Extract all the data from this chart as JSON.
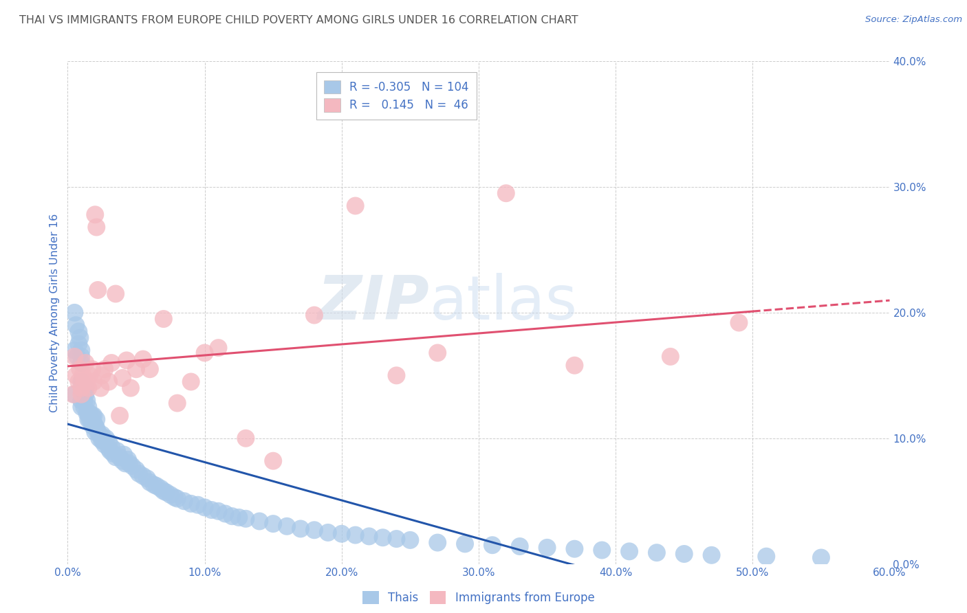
{
  "title": "THAI VS IMMIGRANTS FROM EUROPE CHILD POVERTY AMONG GIRLS UNDER 16 CORRELATION CHART",
  "source": "Source: ZipAtlas.com",
  "ylabel": "Child Poverty Among Girls Under 16",
  "xlim": [
    0,
    0.6
  ],
  "ylim": [
    0,
    0.4
  ],
  "legend_label_thai": "Thais",
  "legend_label_europe": "Immigrants from Europe",
  "thai_R": "-0.305",
  "thai_N": "104",
  "europe_R": "0.145",
  "europe_N": "46",
  "thai_color": "#a8c8e8",
  "thai_line_color": "#2255aa",
  "europe_color": "#f4b8c0",
  "europe_line_color": "#e05070",
  "background_color": "#ffffff",
  "grid_color": "#cccccc",
  "title_color": "#555555",
  "axis_label_color": "#4472c4",
  "legend_text_color": "#4472c4",
  "watermark_zip": "ZIP",
  "watermark_atlas": "atlas",
  "thai_scatter_x": [
    0.005,
    0.005,
    0.007,
    0.008,
    0.009,
    0.01,
    0.01,
    0.01,
    0.01,
    0.01,
    0.012,
    0.012,
    0.013,
    0.013,
    0.014,
    0.014,
    0.015,
    0.015,
    0.015,
    0.016,
    0.016,
    0.017,
    0.018,
    0.018,
    0.019,
    0.019,
    0.02,
    0.02,
    0.021,
    0.021,
    0.022,
    0.023,
    0.024,
    0.025,
    0.025,
    0.026,
    0.027,
    0.028,
    0.03,
    0.03,
    0.031,
    0.032,
    0.033,
    0.035,
    0.036,
    0.038,
    0.04,
    0.041,
    0.042,
    0.044,
    0.045,
    0.047,
    0.05,
    0.052,
    0.055,
    0.058,
    0.06,
    0.063,
    0.065,
    0.068,
    0.07,
    0.072,
    0.075,
    0.078,
    0.08,
    0.085,
    0.09,
    0.095,
    0.1,
    0.105,
    0.11,
    0.115,
    0.12,
    0.125,
    0.13,
    0.14,
    0.15,
    0.16,
    0.17,
    0.18,
    0.19,
    0.2,
    0.21,
    0.22,
    0.23,
    0.24,
    0.25,
    0.27,
    0.29,
    0.31,
    0.33,
    0.35,
    0.37,
    0.39,
    0.41,
    0.43,
    0.45,
    0.47,
    0.51,
    0.55,
    0.005,
    0.006,
    0.008,
    0.01
  ],
  "thai_scatter_y": [
    0.135,
    0.17,
    0.165,
    0.175,
    0.18,
    0.125,
    0.13,
    0.145,
    0.16,
    0.165,
    0.125,
    0.13,
    0.135,
    0.14,
    0.12,
    0.13,
    0.115,
    0.12,
    0.125,
    0.115,
    0.12,
    0.115,
    0.11,
    0.118,
    0.112,
    0.118,
    0.105,
    0.11,
    0.108,
    0.115,
    0.105,
    0.1,
    0.102,
    0.098,
    0.103,
    0.098,
    0.095,
    0.1,
    0.092,
    0.097,
    0.09,
    0.093,
    0.088,
    0.085,
    0.09,
    0.085,
    0.082,
    0.087,
    0.08,
    0.083,
    0.08,
    0.078,
    0.075,
    0.072,
    0.07,
    0.068,
    0.065,
    0.063,
    0.062,
    0.06,
    0.058,
    0.057,
    0.055,
    0.053,
    0.052,
    0.05,
    0.048,
    0.047,
    0.045,
    0.043,
    0.042,
    0.04,
    0.038,
    0.037,
    0.036,
    0.034,
    0.032,
    0.03,
    0.028,
    0.027,
    0.025,
    0.024,
    0.023,
    0.022,
    0.021,
    0.02,
    0.019,
    0.017,
    0.016,
    0.015,
    0.014,
    0.013,
    0.012,
    0.011,
    0.01,
    0.009,
    0.008,
    0.007,
    0.006,
    0.005,
    0.2,
    0.19,
    0.185,
    0.17
  ],
  "europe_scatter_x": [
    0.004,
    0.005,
    0.006,
    0.008,
    0.009,
    0.01,
    0.01,
    0.011,
    0.012,
    0.013,
    0.014,
    0.015,
    0.016,
    0.018,
    0.019,
    0.02,
    0.021,
    0.022,
    0.024,
    0.025,
    0.027,
    0.03,
    0.032,
    0.035,
    0.038,
    0.04,
    0.043,
    0.046,
    0.05,
    0.055,
    0.06,
    0.07,
    0.08,
    0.09,
    0.1,
    0.11,
    0.13,
    0.15,
    0.18,
    0.21,
    0.24,
    0.27,
    0.32,
    0.37,
    0.44,
    0.49
  ],
  "europe_scatter_y": [
    0.135,
    0.165,
    0.15,
    0.145,
    0.155,
    0.135,
    0.14,
    0.15,
    0.145,
    0.16,
    0.145,
    0.14,
    0.15,
    0.155,
    0.145,
    0.278,
    0.268,
    0.218,
    0.14,
    0.15,
    0.155,
    0.145,
    0.16,
    0.215,
    0.118,
    0.148,
    0.162,
    0.14,
    0.155,
    0.163,
    0.155,
    0.195,
    0.128,
    0.145,
    0.168,
    0.172,
    0.1,
    0.082,
    0.198,
    0.285,
    0.15,
    0.168,
    0.295,
    0.158,
    0.165,
    0.192
  ]
}
